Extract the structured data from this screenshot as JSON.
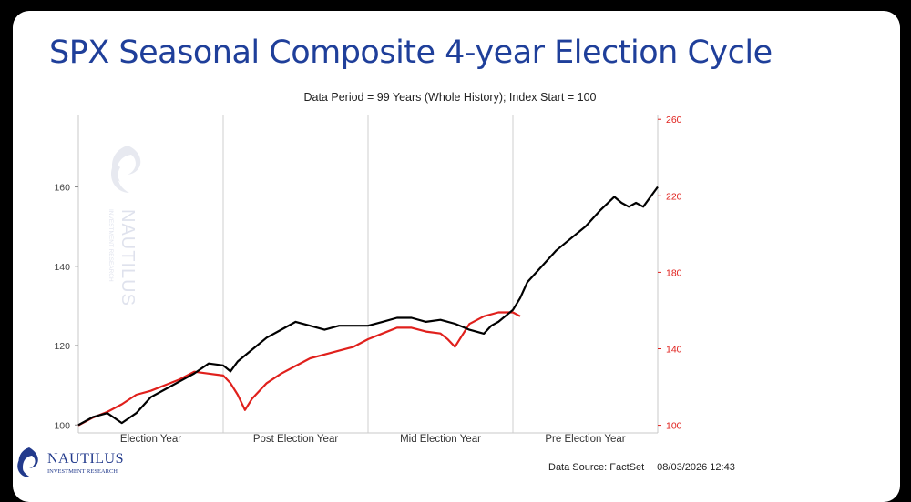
{
  "title": "SPX Seasonal Composite 4-year Election Cycle",
  "subtitle": "Data Period = 99 Years (Whole History); Index Start = 100",
  "footer": {
    "source": "Data Source: FactSet",
    "date": "08/03/2026 12:43"
  },
  "logo": {
    "name": "NAUTILUS",
    "tagline": "INVESTMENT RESEARCH"
  },
  "watermark": {
    "name": "NAUTILUS",
    "tagline": "INVESTMENT RESEARCH"
  },
  "colors": {
    "title": "#1f3f9a",
    "black_series": "#000000",
    "red_series": "#e0201c",
    "divider": "#cfcfcf"
  },
  "chart_data": {
    "type": "line",
    "categories": [
      "Election Year",
      "Post Election Year",
      "Mid Election Year",
      "Pre Election Year"
    ],
    "x_domain": [
      0,
      4
    ],
    "y_left": {
      "range": [
        98,
        178
      ],
      "ticks": [
        100,
        120,
        140,
        160
      ]
    },
    "y_right": {
      "range": [
        96,
        262
      ],
      "ticks": [
        100,
        140,
        180,
        220,
        260
      ]
    },
    "grid": false,
    "series": [
      {
        "color": "#000000",
        "axis": "left",
        "points": [
          [
            0,
            100
          ],
          [
            0.1,
            102
          ],
          [
            0.2,
            103
          ],
          [
            0.3,
            100.5
          ],
          [
            0.4,
            103
          ],
          [
            0.5,
            107
          ],
          [
            0.6,
            109
          ],
          [
            0.7,
            111
          ],
          [
            0.8,
            113
          ],
          [
            0.9,
            115.5
          ],
          [
            1.0,
            115
          ],
          [
            1.05,
            113.5
          ],
          [
            1.1,
            116
          ],
          [
            1.2,
            119
          ],
          [
            1.3,
            122
          ],
          [
            1.4,
            124
          ],
          [
            1.5,
            126
          ],
          [
            1.6,
            125
          ],
          [
            1.7,
            124
          ],
          [
            1.8,
            125
          ],
          [
            1.9,
            125
          ],
          [
            2.0,
            125
          ],
          [
            2.1,
            126
          ],
          [
            2.2,
            127
          ],
          [
            2.3,
            127
          ],
          [
            2.4,
            126
          ],
          [
            2.5,
            126.5
          ],
          [
            2.6,
            125.5
          ],
          [
            2.7,
            124
          ],
          [
            2.8,
            123
          ],
          [
            2.85,
            125
          ],
          [
            2.9,
            126
          ],
          [
            3.0,
            129
          ],
          [
            3.05,
            132
          ],
          [
            3.1,
            136
          ],
          [
            3.2,
            140
          ],
          [
            3.3,
            144
          ],
          [
            3.4,
            147
          ],
          [
            3.5,
            150
          ],
          [
            3.6,
            154
          ],
          [
            3.7,
            157.5
          ],
          [
            3.75,
            156
          ],
          [
            3.8,
            155
          ],
          [
            3.85,
            156
          ],
          [
            3.9,
            155
          ],
          [
            4.0,
            160
          ]
        ]
      },
      {
        "color": "#e0201c",
        "axis": "right",
        "points": [
          [
            0,
            100
          ],
          [
            0.1,
            104
          ],
          [
            0.2,
            107
          ],
          [
            0.3,
            111
          ],
          [
            0.4,
            116
          ],
          [
            0.5,
            118
          ],
          [
            0.6,
            121
          ],
          [
            0.7,
            124
          ],
          [
            0.8,
            128
          ],
          [
            0.9,
            127
          ],
          [
            1.0,
            126
          ],
          [
            1.05,
            122
          ],
          [
            1.1,
            116
          ],
          [
            1.15,
            108
          ],
          [
            1.2,
            114
          ],
          [
            1.3,
            122
          ],
          [
            1.4,
            127
          ],
          [
            1.5,
            131
          ],
          [
            1.6,
            135
          ],
          [
            1.7,
            137
          ],
          [
            1.8,
            139
          ],
          [
            1.9,
            141
          ],
          [
            2.0,
            145
          ],
          [
            2.1,
            148
          ],
          [
            2.2,
            151
          ],
          [
            2.3,
            151
          ],
          [
            2.4,
            149
          ],
          [
            2.5,
            148
          ],
          [
            2.55,
            145
          ],
          [
            2.6,
            141
          ],
          [
            2.65,
            147
          ],
          [
            2.7,
            153
          ],
          [
            2.8,
            157
          ],
          [
            2.9,
            159
          ],
          [
            3.0,
            159
          ],
          [
            3.05,
            157
          ]
        ]
      }
    ]
  }
}
